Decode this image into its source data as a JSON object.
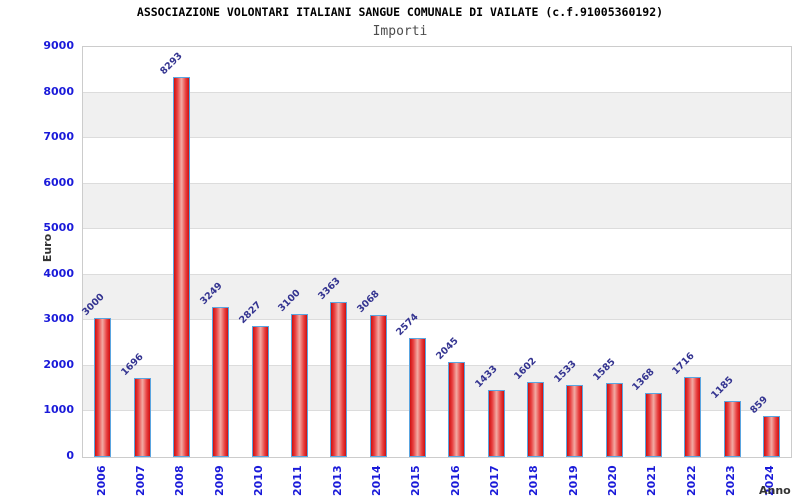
{
  "chart_data": {
    "type": "bar",
    "title": "ASSOCIAZIONE VOLONTARI ITALIANI SANGUE COMUNALE DI VAILATE (c.f.91005360192)",
    "subtitle": "Importi",
    "xlabel": "Anno",
    "ylabel": "Euro",
    "categories": [
      "2006",
      "2007",
      "2008",
      "2009",
      "2010",
      "2011",
      "2013",
      "2014",
      "2015",
      "2016",
      "2017",
      "2018",
      "2019",
      "2020",
      "2021",
      "2022",
      "2023",
      "2024"
    ],
    "values": [
      3000,
      1696,
      8293,
      3249,
      2827,
      3100,
      3363,
      3068,
      2574,
      2045,
      1433,
      1602,
      1533,
      1585,
      1368,
      1716,
      1185,
      859
    ],
    "ylim": [
      0,
      9000
    ],
    "yticks": [
      0,
      1000,
      2000,
      3000,
      4000,
      5000,
      6000,
      7000,
      8000,
      9000
    ],
    "legend": "none",
    "grid": "horizontal-bands",
    "colors": {
      "title": "#000000",
      "subtitle": "#4d4d4d",
      "axis_title": "#333333",
      "tick_label": "#1a1ad9",
      "value_label": "#333390",
      "bar_dark": "#cf1010",
      "bar_mid": "#e84040",
      "bar_light": "#f2aba4",
      "bar_border": "#5aa5e0",
      "band": "#f0f0f0",
      "gridline": "#dcdcdc",
      "plot_border": "#cccccc",
      "background": "#ffffff"
    }
  }
}
